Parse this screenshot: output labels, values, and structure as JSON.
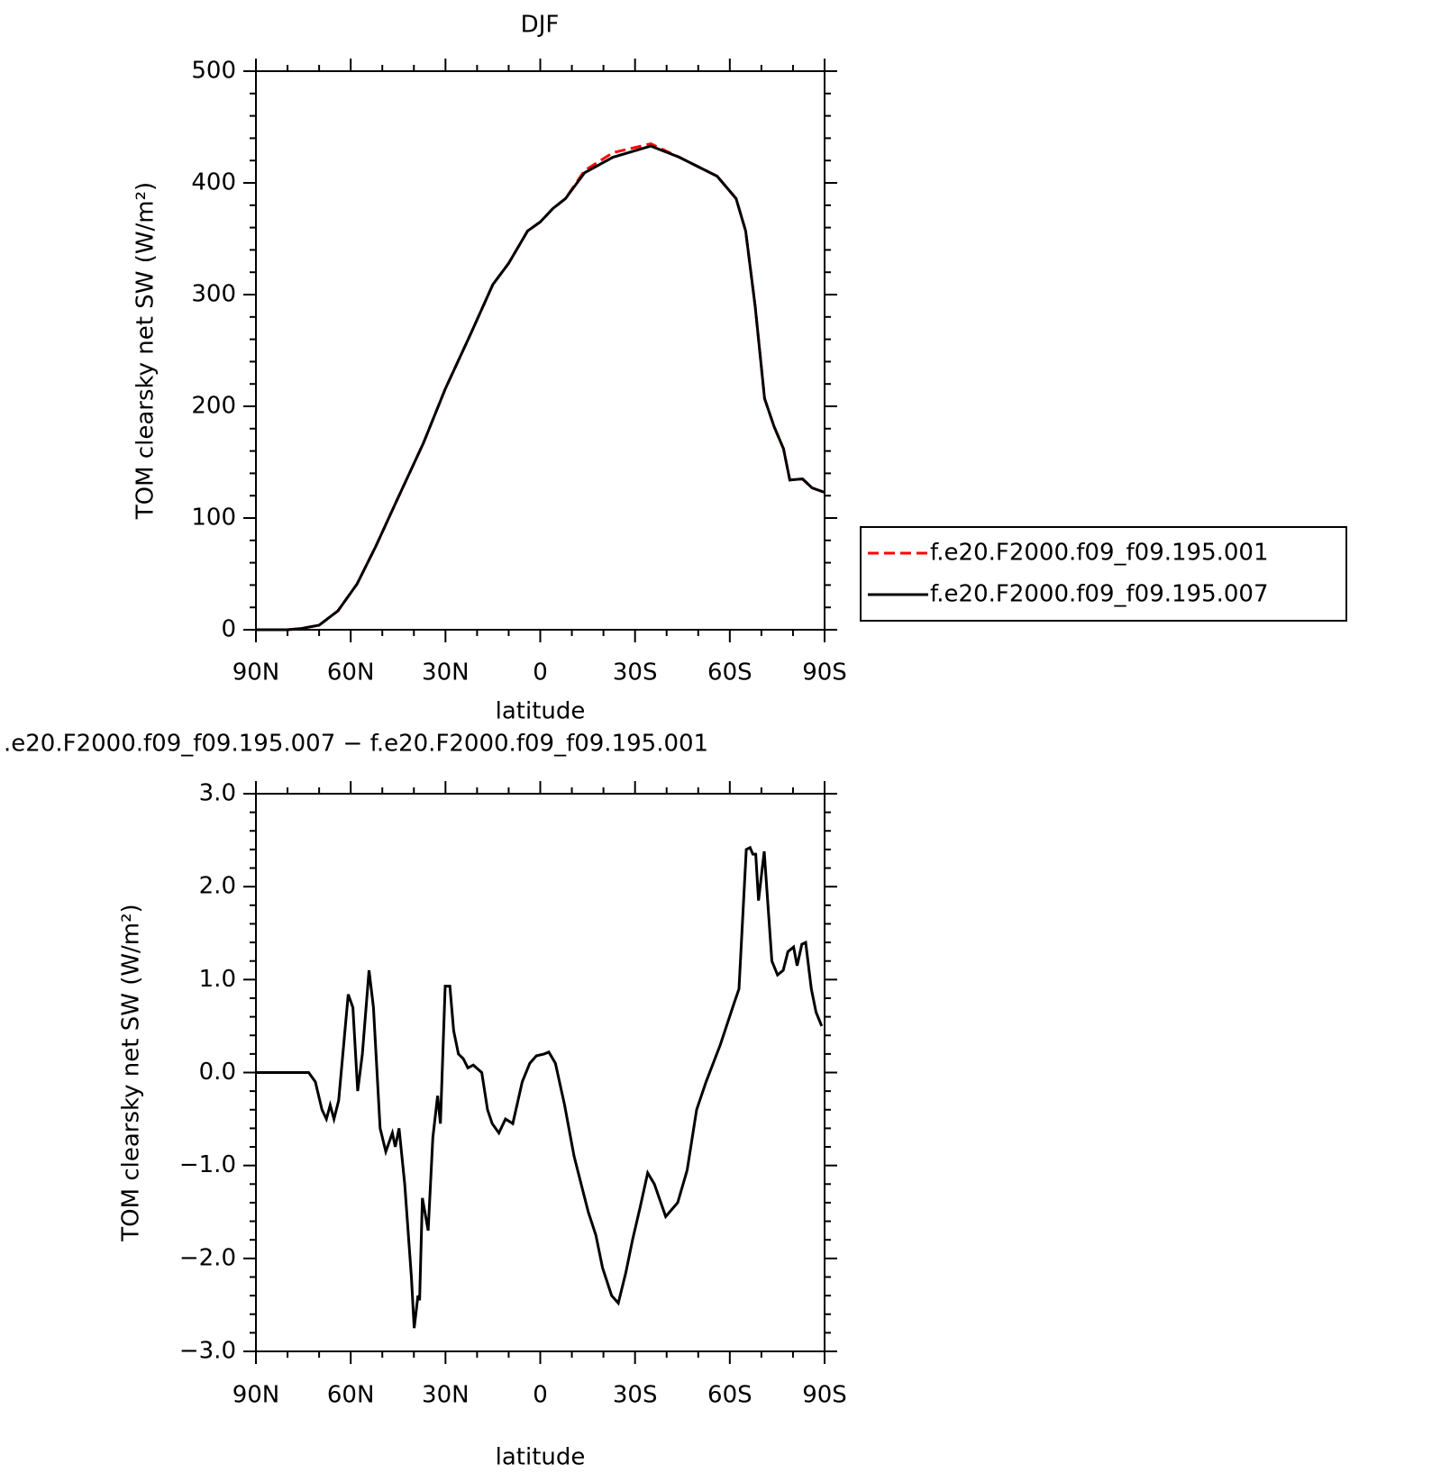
{
  "chart_data": [
    {
      "type": "line",
      "title": "DJF",
      "xlabel": "latitude",
      "ylabel": "TOM clearsky net SW (W/m²)",
      "x": [
        90,
        80,
        76,
        70,
        64,
        58,
        52,
        46,
        37,
        30,
        22,
        15,
        10,
        4,
        0,
        -4,
        -8,
        -14,
        -23,
        -35,
        -44,
        -56,
        -62,
        -65,
        -68,
        -71,
        -74,
        -77,
        -79,
        -83,
        -86,
        -90
      ],
      "series": [
        {
          "name": "f.e20.F2000.f09_f09.195.001",
          "color": "#ff0000",
          "dash": true,
          "values": [
            0,
            0,
            1,
            4,
            17,
            41,
            75,
            112,
            167,
            216,
            265,
            309,
            328,
            357,
            365,
            377,
            386,
            411,
            427,
            435,
            423,
            406,
            386,
            357,
            290,
            207,
            182,
            162,
            134,
            135,
            127,
            123
          ]
        },
        {
          "name": "f.e20.F2000.f09_f09.195.007",
          "color": "#000000",
          "dash": false,
          "values": [
            0,
            0,
            1,
            4,
            17,
            41,
            75,
            112,
            167,
            216,
            265,
            309,
            328,
            357,
            365,
            377,
            386,
            409,
            423,
            433,
            423,
            406,
            386,
            357,
            290,
            207,
            182,
            162,
            134,
            135,
            127,
            123
          ]
        }
      ],
      "xlim": [
        90,
        -90
      ],
      "xticks": [
        {
          "value": 90,
          "label": "90N"
        },
        {
          "value": 60,
          "label": "60N"
        },
        {
          "value": 30,
          "label": "30N"
        },
        0,
        {
          "value": -30,
          "label": "30S"
        },
        {
          "value": -60,
          "label": "60S"
        },
        {
          "value": -90,
          "label": "90S"
        }
      ],
      "ylim": [
        0,
        500
      ],
      "yticks": [
        0,
        100,
        200,
        300,
        400,
        500
      ],
      "legend": "right"
    },
    {
      "type": "line",
      "title": ".e20.F2000.f09_f09.195.007 − f.e20.F2000.f09_f09.195.001",
      "xlabel": "latitude",
      "ylabel": "TOM clearsky net SW (W/m²)",
      "x": [
        90,
        73.3,
        71.2,
        69.1,
        67.7,
        66.5,
        65.3,
        63.8,
        60.8,
        59.3,
        57.8,
        56.3,
        54.2,
        52.8,
        50.7,
        48.9,
        46.8,
        45.9,
        44.7,
        42.9,
        40.8,
        39.9,
        38.7,
        38.2,
        37.3,
        35.5,
        34,
        32.5,
        31.6,
        30.1,
        28.6,
        27.4,
        25.9,
        24.4,
        22.9,
        21.2,
        18.5,
        16.7,
        15.2,
        13.1,
        11,
        8.7,
        5.7,
        3.3,
        1.2,
        -1.2,
        -2.7,
        -4.8,
        -7.7,
        -10.7,
        -13.7,
        -15.2,
        -17.6,
        -19.7,
        -22.6,
        -24.7,
        -27.1,
        -29.2,
        -31.6,
        -34,
        -36.1,
        -39.7,
        -43.5,
        -46.5,
        -49.5,
        -52.5,
        -57,
        -61.4,
        -62.9,
        -65.2,
        -66.4,
        -67.3,
        -68.2,
        -69.1,
        -70.9,
        -73.3,
        -75.1,
        -76.9,
        -78.4,
        -80.2,
        -81.3,
        -82.8,
        -84,
        -85.8,
        -87.3,
        -89.1
      ],
      "series": [
        {
          "color": "#000000",
          "dash": false,
          "values": [
            0,
            0,
            -0.1,
            -0.4,
            -0.5,
            -0.35,
            -0.5,
            -0.3,
            0.84,
            0.7,
            -0.2,
            0.2,
            1.1,
            0.7,
            -0.6,
            -0.85,
            -0.65,
            -0.8,
            -0.6,
            -1.2,
            -2.2,
            -2.75,
            -2.4,
            -2.45,
            -1.35,
            -1.7,
            -0.7,
            -0.25,
            -0.55,
            0.93,
            0.93,
            0.45,
            0.2,
            0.15,
            0.05,
            0.08,
            0,
            -0.4,
            -0.55,
            -0.65,
            -0.5,
            -0.55,
            -0.1,
            0.1,
            0.18,
            0.2,
            0.22,
            0.1,
            -0.35,
            -0.9,
            -1.3,
            -1.5,
            -1.75,
            -2.1,
            -2.4,
            -2.48,
            -2.15,
            -1.8,
            -1.45,
            -1.08,
            -1.2,
            -1.55,
            -1.4,
            -1.05,
            -0.4,
            -0.1,
            0.3,
            0.75,
            0.9,
            2.4,
            2.42,
            2.35,
            2.35,
            1.85,
            2.38,
            1.2,
            1.05,
            1.1,
            1.3,
            1.35,
            1.15,
            1.38,
            1.4,
            0.9,
            0.65,
            0.5
          ]
        }
      ],
      "xlim": [
        90,
        -90
      ],
      "xticks": [
        {
          "value": 90,
          "label": "90N"
        },
        {
          "value": 60,
          "label": "60N"
        },
        {
          "value": 30,
          "label": "30N"
        },
        0,
        {
          "value": -30,
          "label": "30S"
        },
        {
          "value": -60,
          "label": "60S"
        },
        {
          "value": -90,
          "label": "90S"
        }
      ],
      "ylim": [
        -3,
        3
      ],
      "yticks": [
        {
          "value": -3,
          "label": "−3.0"
        },
        {
          "value": -2,
          "label": "−2.0"
        },
        {
          "value": -1,
          "label": "−1.0"
        },
        {
          "value": 0,
          "label": "0.0"
        },
        {
          "value": 1,
          "label": "1.0"
        },
        {
          "value": 2,
          "label": "2.0"
        },
        {
          "value": 3,
          "label": "3.0"
        }
      ]
    }
  ]
}
